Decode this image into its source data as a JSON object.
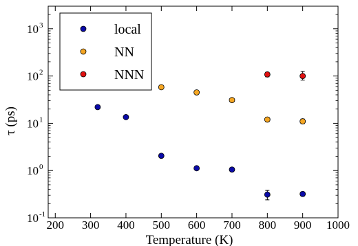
{
  "chart_data": {
    "type": "scatter",
    "xlabel": "Temperature (K)",
    "ylabel": "τ (ps)",
    "xlim": [
      180,
      1000
    ],
    "ylim": [
      0.1,
      3000
    ],
    "yscale": "log",
    "xticks": [
      200,
      300,
      400,
      500,
      600,
      700,
      800,
      900,
      1000
    ],
    "yticks": [
      {
        "value": 0.1,
        "base": "10",
        "exp": "-1"
      },
      {
        "value": 1,
        "base": "10",
        "exp": "0"
      },
      {
        "value": 10,
        "base": "10",
        "exp": "1"
      },
      {
        "value": 100,
        "base": "10",
        "exp": "2"
      },
      {
        "value": 1000,
        "base": "10",
        "exp": "3"
      }
    ],
    "grid": false,
    "legend_position": "top-left",
    "series": [
      {
        "name": "local",
        "color": "#0a0aa8",
        "points": [
          {
            "x": 320,
            "y": 22
          },
          {
            "x": 400,
            "y": 13.5
          },
          {
            "x": 500,
            "y": 2.05
          },
          {
            "x": 600,
            "y": 1.12
          },
          {
            "x": 700,
            "y": 1.05
          },
          {
            "x": 800,
            "y": 0.31,
            "err": [
              0.24,
              0.38
            ]
          },
          {
            "x": 900,
            "y": 0.32,
            "err": [
              0.29,
              0.35
            ]
          }
        ]
      },
      {
        "name": "NN",
        "color": "#f5a623",
        "points": [
          {
            "x": 500,
            "y": 58,
            "err": [
              54,
              62
            ]
          },
          {
            "x": 600,
            "y": 45,
            "err": [
              42,
              48
            ]
          },
          {
            "x": 700,
            "y": 31,
            "err": [
              29,
              33
            ]
          },
          {
            "x": 800,
            "y": 12,
            "err": [
              10.8,
              13.3
            ]
          },
          {
            "x": 900,
            "y": 11,
            "err": [
              9.8,
              12.3
            ]
          }
        ]
      },
      {
        "name": "NNN",
        "color": "#e01010",
        "points": [
          {
            "x": 800,
            "y": 108,
            "err": [
              96,
              120
            ]
          },
          {
            "x": 900,
            "y": 100,
            "err": [
              82,
              125
            ]
          }
        ]
      }
    ]
  }
}
